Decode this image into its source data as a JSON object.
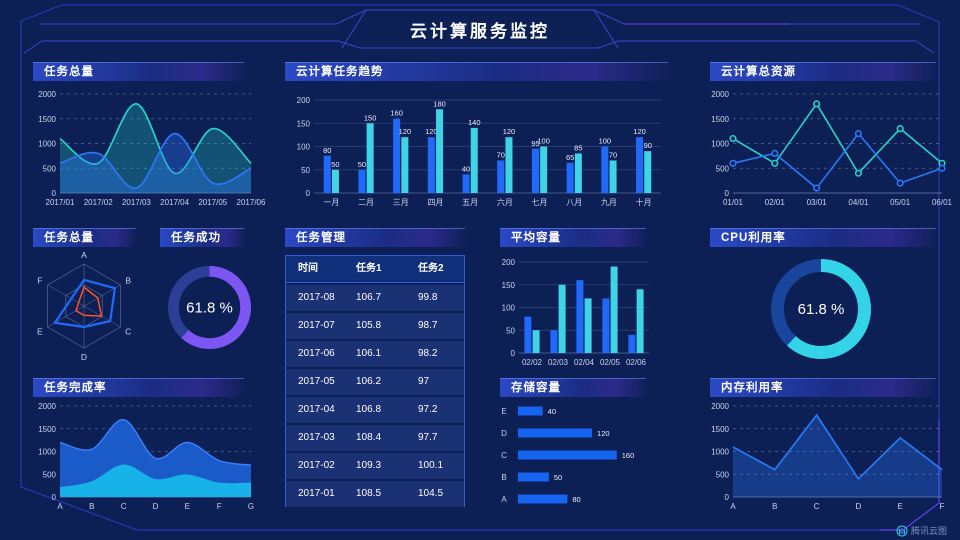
{
  "title": "云计算服务监控",
  "logo": {
    "text": "腾讯云图"
  },
  "colors": {
    "bg": "#0d2056",
    "blue": "#1f6afd",
    "cyan": "#3ed4e6",
    "teal": "#27d3c7",
    "purple": "#7d55f2",
    "frame": "#2a3abf"
  },
  "panels": {
    "task_total_line": {
      "title": "任务总量"
    },
    "task_trend": {
      "title": "云计算任务趋势"
    },
    "cloud_resources": {
      "title": "云计算总资源"
    },
    "task_total_radar": {
      "title": "任务总量"
    },
    "task_success": {
      "title": "任务成功"
    },
    "task_manage": {
      "title": "任务管理"
    },
    "avg_capacity": {
      "title": "平均容量"
    },
    "cpu_usage": {
      "title": "CPU利用率"
    },
    "task_completion": {
      "title": "任务完成率"
    },
    "storage": {
      "title": "存储容量"
    },
    "memory": {
      "title": "内存利用率"
    }
  },
  "chart_data": [
    {
      "name": "task_total_line",
      "type": "area",
      "title": "任务总量",
      "smooth": true,
      "grid": "dash",
      "x": [
        "2017/01",
        "2017/02",
        "2017/03",
        "2017/04",
        "2017/05",
        "2017/06"
      ],
      "ylim": [
        0,
        2000
      ],
      "yticks": [
        0,
        500,
        1000,
        1500,
        2000
      ],
      "series": [
        {
          "name": "series-teal",
          "color": "#27d3c7",
          "fill_opacity": 0.28,
          "values": [
            1100,
            600,
            1800,
            400,
            1300,
            600
          ]
        },
        {
          "name": "series-blue",
          "color": "#2a78f5",
          "fill_opacity": 0.35,
          "values": [
            600,
            800,
            100,
            1200,
            200,
            500
          ]
        }
      ]
    },
    {
      "name": "task_trend",
      "type": "bar",
      "title": "云计算任务趋势",
      "value_labels": true,
      "categories": [
        "一月",
        "二月",
        "三月",
        "四月",
        "五月",
        "六月",
        "七月",
        "八月",
        "九月",
        "十月"
      ],
      "ylim": [
        0,
        200
      ],
      "yticks": [
        0,
        50,
        100,
        150,
        200
      ],
      "series": [
        {
          "name": "任务1",
          "color": "#1f6afd",
          "values": [
            80,
            50,
            160,
            120,
            40,
            70,
            95,
            65,
            100,
            120
          ]
        },
        {
          "name": "任务2",
          "color": "#3ed4e6",
          "values": [
            50,
            150,
            120,
            180,
            140,
            120,
            100,
            85,
            70,
            90
          ]
        }
      ]
    },
    {
      "name": "cloud_resources",
      "type": "line",
      "title": "云计算总资源",
      "markers": true,
      "grid": "dash",
      "x": [
        "01/01",
        "02/01",
        "03/01",
        "04/01",
        "05/01",
        "06/01"
      ],
      "ylim": [
        0,
        2000
      ],
      "yticks": [
        0,
        500,
        1000,
        1500,
        2000
      ],
      "series": [
        {
          "name": "series-teal",
          "color": "#27d3c7",
          "values": [
            1100,
            600,
            1800,
            400,
            1300,
            600
          ]
        },
        {
          "name": "series-blue",
          "color": "#2a78f5",
          "values": [
            600,
            800,
            100,
            1200,
            200,
            500
          ]
        }
      ]
    },
    {
      "name": "task_radar",
      "type": "radar",
      "title": "任务总量",
      "axes": [
        "A",
        "B",
        "C",
        "D",
        "E",
        "F"
      ],
      "max": 100,
      "series": [
        {
          "name": "series-blue",
          "color": "#1f6afd",
          "values": [
            62,
            85,
            72,
            50,
            80,
            35
          ]
        },
        {
          "name": "series-orange",
          "color": "#ff5228",
          "values": [
            45,
            38,
            48,
            22,
            22,
            15
          ]
        }
      ]
    },
    {
      "name": "task_success",
      "type": "donut",
      "title": "任务成功",
      "value": 61.8,
      "label": "61.8 %",
      "color": "#7d55f2",
      "track": "#2c3f96"
    },
    {
      "name": "task_table",
      "type": "table",
      "title": "任务管理",
      "columns": [
        "时间",
        "任务1",
        "任务2"
      ],
      "rows": [
        [
          "2017-08",
          "106.7",
          "99.8"
        ],
        [
          "2017-07",
          "105.8",
          "98.7"
        ],
        [
          "2017-06",
          "106.1",
          "98.2"
        ],
        [
          "2017-05",
          "106.2",
          "97"
        ],
        [
          "2017-04",
          "106.8",
          "97.2"
        ],
        [
          "2017-03",
          "108.4",
          "97.7"
        ],
        [
          "2017-02",
          "109.3",
          "100.1"
        ],
        [
          "2017-01",
          "108.5",
          "104.5"
        ]
      ]
    },
    {
      "name": "avg_capacity",
      "type": "bar",
      "title": "平均容量",
      "value_labels": false,
      "categories": [
        "02/02",
        "02/03",
        "02/04",
        "02/05",
        "02/06"
      ],
      "ylim": [
        0,
        200
      ],
      "yticks": [
        0,
        50,
        100,
        150,
        200
      ],
      "series": [
        {
          "name": "series-blue",
          "color": "#1f6afd",
          "values": [
            80,
            50,
            160,
            120,
            40
          ]
        },
        {
          "name": "series-cyan",
          "color": "#3ed4e6",
          "values": [
            50,
            150,
            120,
            190,
            140
          ]
        }
      ]
    },
    {
      "name": "cpu_usage",
      "type": "donut",
      "title": "CPU利用率",
      "value": 61.8,
      "label": "61.8 %",
      "color": "#33d4e8",
      "track": "#1a459c"
    },
    {
      "name": "task_completion",
      "type": "area",
      "title": "任务完成率",
      "smooth": true,
      "grid": "dash",
      "x": [
        "A",
        "B",
        "C",
        "D",
        "E",
        "F",
        "G"
      ],
      "ylim": [
        0,
        2000
      ],
      "yticks": [
        0,
        500,
        1000,
        1500,
        2000
      ],
      "series": [
        {
          "name": "series-blue",
          "color": "#3c82ff",
          "fill": "#1b5fd2",
          "fill_opacity": 0.92,
          "values": [
            1200,
            1050,
            1700,
            850,
            1200,
            800,
            700
          ]
        },
        {
          "name": "series-cyan",
          "color": "#17b2e8",
          "fill": "#17b2e8",
          "fill_opacity": 1,
          "values": [
            200,
            330,
            700,
            380,
            480,
            300,
            300
          ]
        }
      ]
    },
    {
      "name": "storage",
      "type": "hbar",
      "title": "存储容量",
      "color": "#1565f0",
      "xmax": 175,
      "categories": [
        "E",
        "D",
        "C",
        "B",
        "A"
      ],
      "values": [
        40,
        120,
        160,
        50,
        80
      ]
    },
    {
      "name": "memory",
      "type": "line",
      "title": "内存利用率",
      "grid": "dash",
      "x": [
        "A",
        "B",
        "C",
        "D",
        "E",
        "F"
      ],
      "ylim": [
        0,
        2000
      ],
      "yticks": [
        0,
        500,
        1000,
        1500,
        2000
      ],
      "series": [
        {
          "name": "series-blue",
          "color": "#2a78f5",
          "fill_opacity": 0.32,
          "values": [
            1100,
            600,
            1800,
            400,
            1300,
            600
          ]
        }
      ]
    }
  ]
}
